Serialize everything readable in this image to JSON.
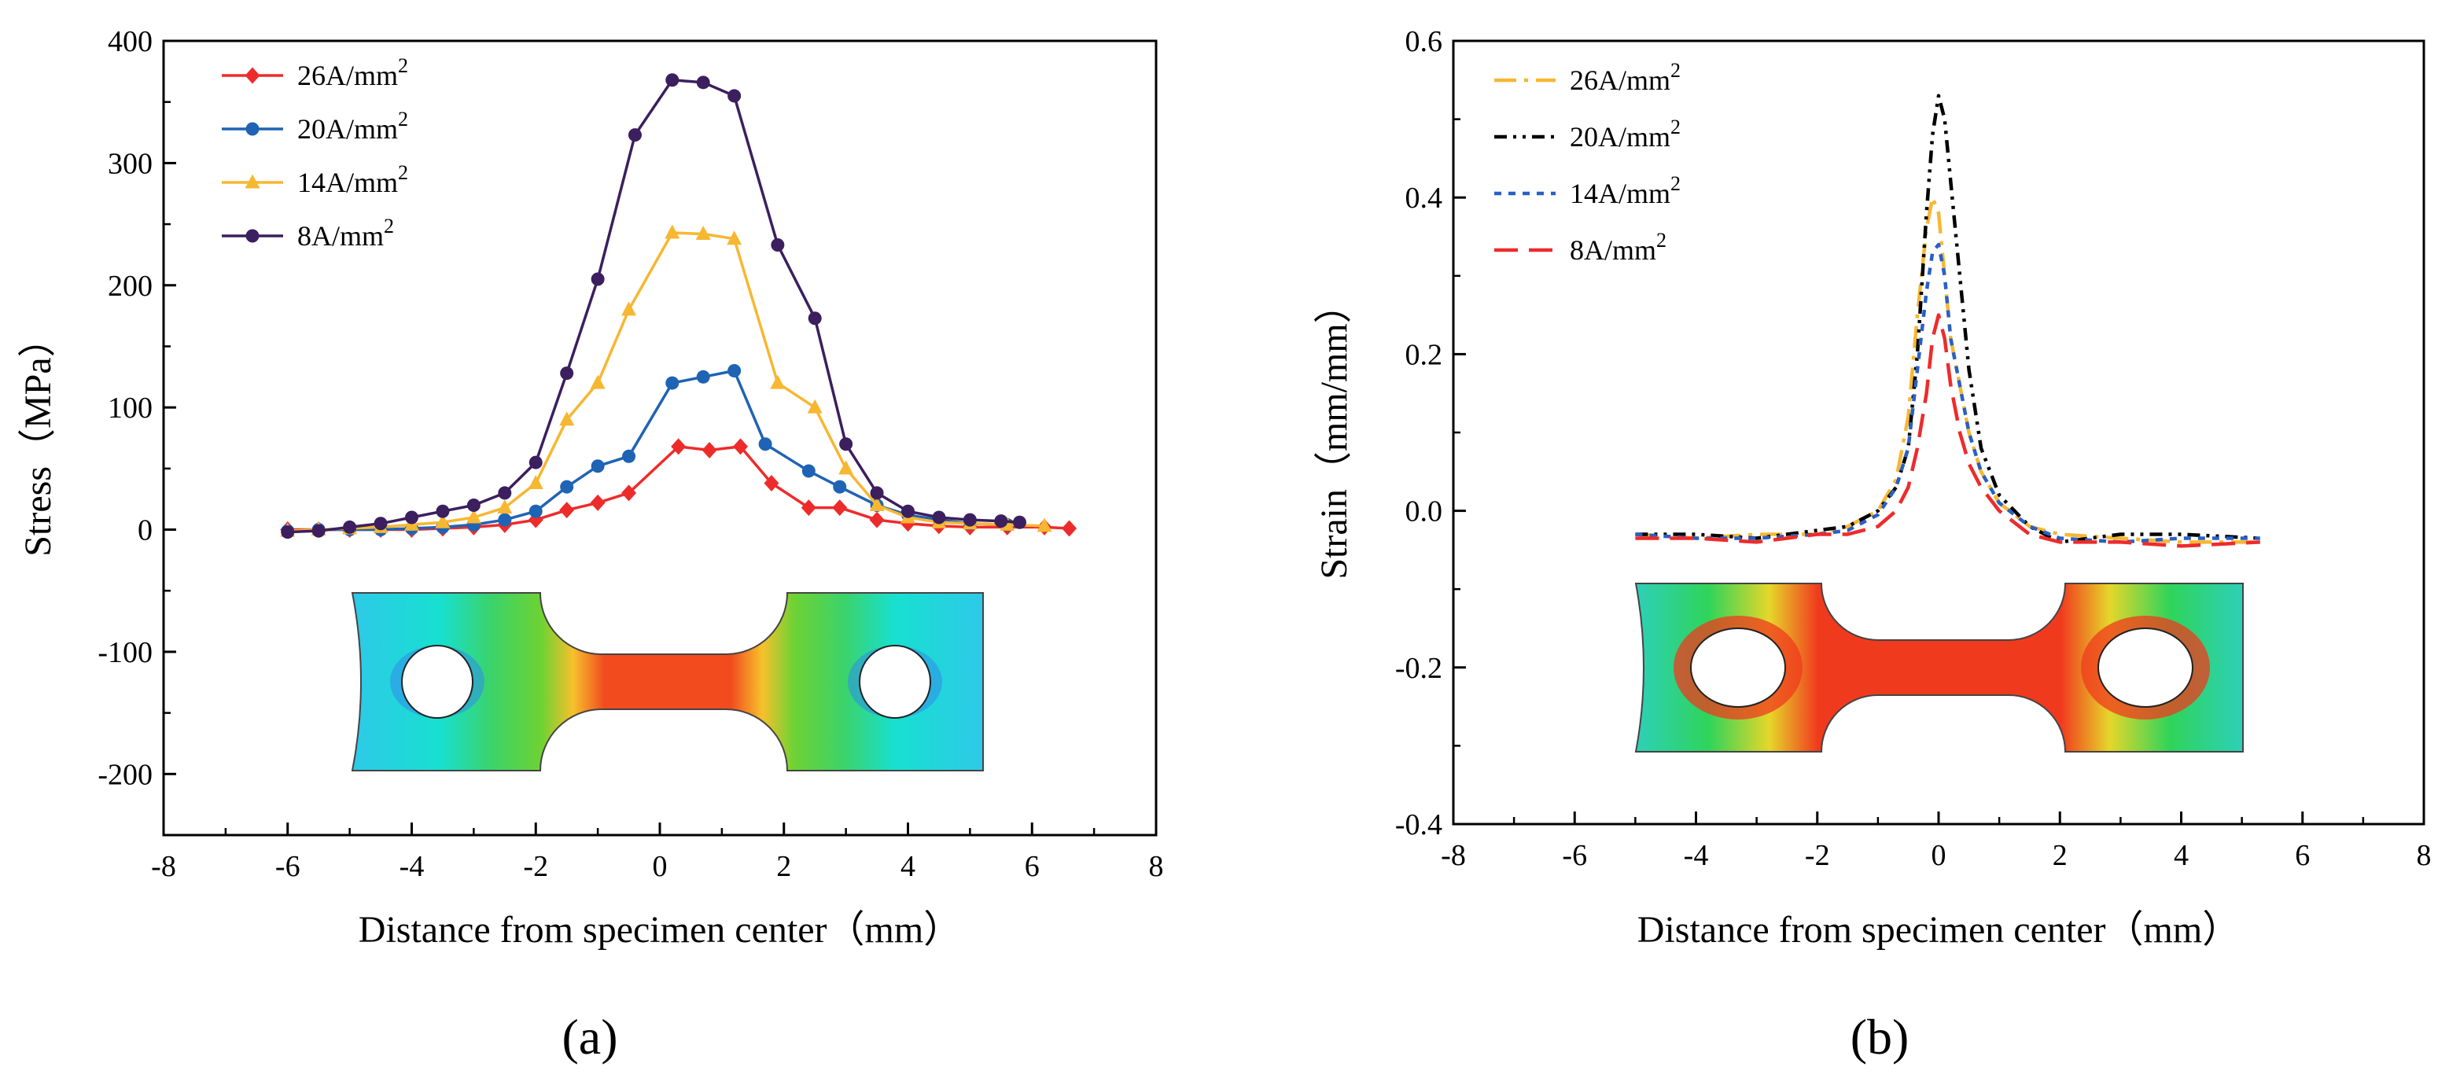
{
  "figure": {
    "panel_labels": [
      "(a)",
      "(b)"
    ],
    "legend_unit_superscript": "2"
  },
  "colors": {
    "red": "#ee2b2b",
    "blue": "#1f63b4",
    "yellow": "#f7b731",
    "purple": "#3b1f5e",
    "black": "#000000",
    "dashblue": "#2a60c4",
    "dashred": "#ee2b2b"
  },
  "chart_data": [
    {
      "type": "line",
      "title": "",
      "xlabel": "Distance from specimen center（mm）",
      "ylabel": "Stress（MPa）",
      "xlim": [
        -8,
        8
      ],
      "ylim": [
        -250,
        400
      ],
      "xticks": [
        -8,
        -6,
        -4,
        -2,
        0,
        2,
        4,
        6,
        8
      ],
      "yticks": [
        -200,
        -100,
        0,
        100,
        200,
        300,
        400
      ],
      "legend_position": "top-left",
      "series": [
        {
          "name": "26A/mm",
          "color": "#ee2b2b",
          "marker": "diamond",
          "x": [
            -6.0,
            -5.5,
            -5.0,
            -4.5,
            -4.0,
            -3.5,
            -3.0,
            -2.5,
            -2.0,
            -1.5,
            -1.0,
            -0.5,
            0.3,
            0.8,
            1.3,
            1.8,
            2.4,
            2.9,
            3.5,
            4.0,
            4.5,
            5.0,
            5.6,
            6.2,
            6.6
          ],
          "y": [
            0,
            0,
            0,
            0,
            0,
            1,
            2,
            4,
            8,
            16,
            22,
            30,
            68,
            65,
            68,
            38,
            18,
            18,
            8,
            5,
            3,
            2,
            2,
            2,
            1
          ]
        },
        {
          "name": "20A/mm",
          "color": "#1f63b4",
          "marker": "circle",
          "x": [
            -6.0,
            -5.5,
            -5.0,
            -4.5,
            -4.0,
            -3.5,
            -3.0,
            -2.5,
            -2.0,
            -1.5,
            -1.0,
            -0.5,
            0.2,
            0.7,
            1.2,
            1.7,
            2.4,
            2.9,
            3.5,
            4.0,
            4.5,
            5.0,
            5.6
          ],
          "y": [
            -1,
            0,
            0,
            0,
            1,
            2,
            4,
            8,
            15,
            35,
            52,
            60,
            120,
            125,
            130,
            70,
            48,
            35,
            20,
            12,
            8,
            5,
            4
          ]
        },
        {
          "name": "14A/mm",
          "color": "#f7b731",
          "marker": "triangle",
          "x": [
            -6.0,
            -5.5,
            -5.0,
            -4.5,
            -4.0,
            -3.5,
            -3.0,
            -2.5,
            -2.0,
            -1.5,
            -1.0,
            -0.5,
            0.2,
            0.7,
            1.2,
            1.9,
            2.5,
            3.0,
            3.5,
            4.0,
            4.5,
            5.0,
            5.6,
            6.2
          ],
          "y": [
            -1,
            0,
            1,
            2,
            4,
            6,
            10,
            18,
            38,
            90,
            120,
            180,
            243,
            242,
            238,
            120,
            100,
            50,
            20,
            10,
            6,
            5,
            4,
            3
          ]
        },
        {
          "name": "8A/mm",
          "color": "#3b1f5e",
          "marker": "circle",
          "x": [
            -6.0,
            -5.5,
            -5.0,
            -4.5,
            -4.0,
            -3.5,
            -3.0,
            -2.5,
            -2.0,
            -1.5,
            -1.0,
            -0.4,
            0.2,
            0.7,
            1.2,
            1.9,
            2.5,
            3.0,
            3.5,
            4.0,
            4.5,
            5.0,
            5.5,
            5.8
          ],
          "y": [
            -2,
            -1,
            2,
            5,
            10,
            15,
            20,
            30,
            55,
            128,
            205,
            323,
            368,
            366,
            355,
            233,
            173,
            70,
            30,
            15,
            10,
            8,
            7,
            6
          ]
        }
      ]
    },
    {
      "type": "line",
      "title": "",
      "xlabel": "Distance from specimen center（mm）",
      "ylabel": "Strain（mm/mm）",
      "xlim": [
        -8,
        8
      ],
      "ylim": [
        -0.4,
        0.6
      ],
      "xticks": [
        -8,
        -6,
        -4,
        -2,
        0,
        2,
        4,
        6,
        8
      ],
      "yticks": [
        -0.4,
        -0.2,
        0.0,
        0.2,
        0.4,
        0.6
      ],
      "ytick_labels": [
        "-0.4",
        "-0.2",
        "0.0",
        "0.2",
        "0.4",
        "0.6"
      ],
      "legend_position": "top-left",
      "series": [
        {
          "name": "26A/mm",
          "color": "#f7b731",
          "dash": "28,10,5,10",
          "x": [
            -5.0,
            -4.0,
            -3.0,
            -2.0,
            -1.5,
            -1.0,
            -0.7,
            -0.5,
            -0.35,
            -0.2,
            -0.1,
            0.0,
            0.1,
            0.2,
            0.35,
            0.5,
            0.7,
            1.0,
            1.5,
            2.0,
            3.0,
            4.0,
            5.3
          ],
          "y": [
            -0.03,
            -0.035,
            -0.03,
            -0.03,
            -0.02,
            0.0,
            0.04,
            0.12,
            0.25,
            0.36,
            0.4,
            0.38,
            0.3,
            0.22,
            0.16,
            0.1,
            0.05,
            0.01,
            -0.02,
            -0.03,
            -0.035,
            -0.04,
            -0.04
          ]
        },
        {
          "name": "20A/mm",
          "color": "#000000",
          "dash": "16,8,4,8,4,8",
          "x": [
            -5.0,
            -4.0,
            -3.0,
            -2.0,
            -1.5,
            -1.0,
            -0.7,
            -0.5,
            -0.35,
            -0.2,
            -0.1,
            0.0,
            0.1,
            0.2,
            0.35,
            0.5,
            0.7,
            1.0,
            1.5,
            2.0,
            3.0,
            4.0,
            5.3
          ],
          "y": [
            -0.03,
            -0.03,
            -0.035,
            -0.025,
            -0.02,
            0.0,
            0.03,
            0.08,
            0.2,
            0.38,
            0.48,
            0.53,
            0.5,
            0.42,
            0.3,
            0.18,
            0.08,
            0.02,
            -0.02,
            -0.04,
            -0.03,
            -0.03,
            -0.035
          ]
        },
        {
          "name": "14A/mm",
          "color": "#2a60c4",
          "dash": "9,9",
          "x": [
            -5.0,
            -4.0,
            -3.0,
            -2.0,
            -1.5,
            -1.0,
            -0.7,
            -0.5,
            -0.35,
            -0.2,
            -0.1,
            0.0,
            0.1,
            0.2,
            0.35,
            0.5,
            0.7,
            1.0,
            1.5,
            2.0,
            3.0,
            4.0,
            5.3
          ],
          "y": [
            -0.03,
            -0.035,
            -0.035,
            -0.03,
            -0.025,
            -0.005,
            0.03,
            0.08,
            0.18,
            0.28,
            0.33,
            0.34,
            0.3,
            0.22,
            0.16,
            0.1,
            0.05,
            0.01,
            -0.02,
            -0.035,
            -0.04,
            -0.035,
            -0.035
          ]
        },
        {
          "name": "8A/mm",
          "color": "#ee2b2b",
          "dash": "30,14",
          "x": [
            -5.0,
            -4.0,
            -3.0,
            -2.0,
            -1.5,
            -1.0,
            -0.7,
            -0.5,
            -0.35,
            -0.2,
            -0.1,
            0.0,
            0.1,
            0.2,
            0.35,
            0.5,
            0.7,
            1.0,
            1.5,
            2.0,
            3.0,
            4.0,
            5.3
          ],
          "y": [
            -0.035,
            -0.035,
            -0.04,
            -0.03,
            -0.03,
            -0.02,
            0.0,
            0.03,
            0.08,
            0.15,
            0.22,
            0.25,
            0.22,
            0.16,
            0.1,
            0.06,
            0.03,
            0.0,
            -0.03,
            -0.04,
            -0.04,
            -0.045,
            -0.04
          ]
        }
      ]
    }
  ]
}
